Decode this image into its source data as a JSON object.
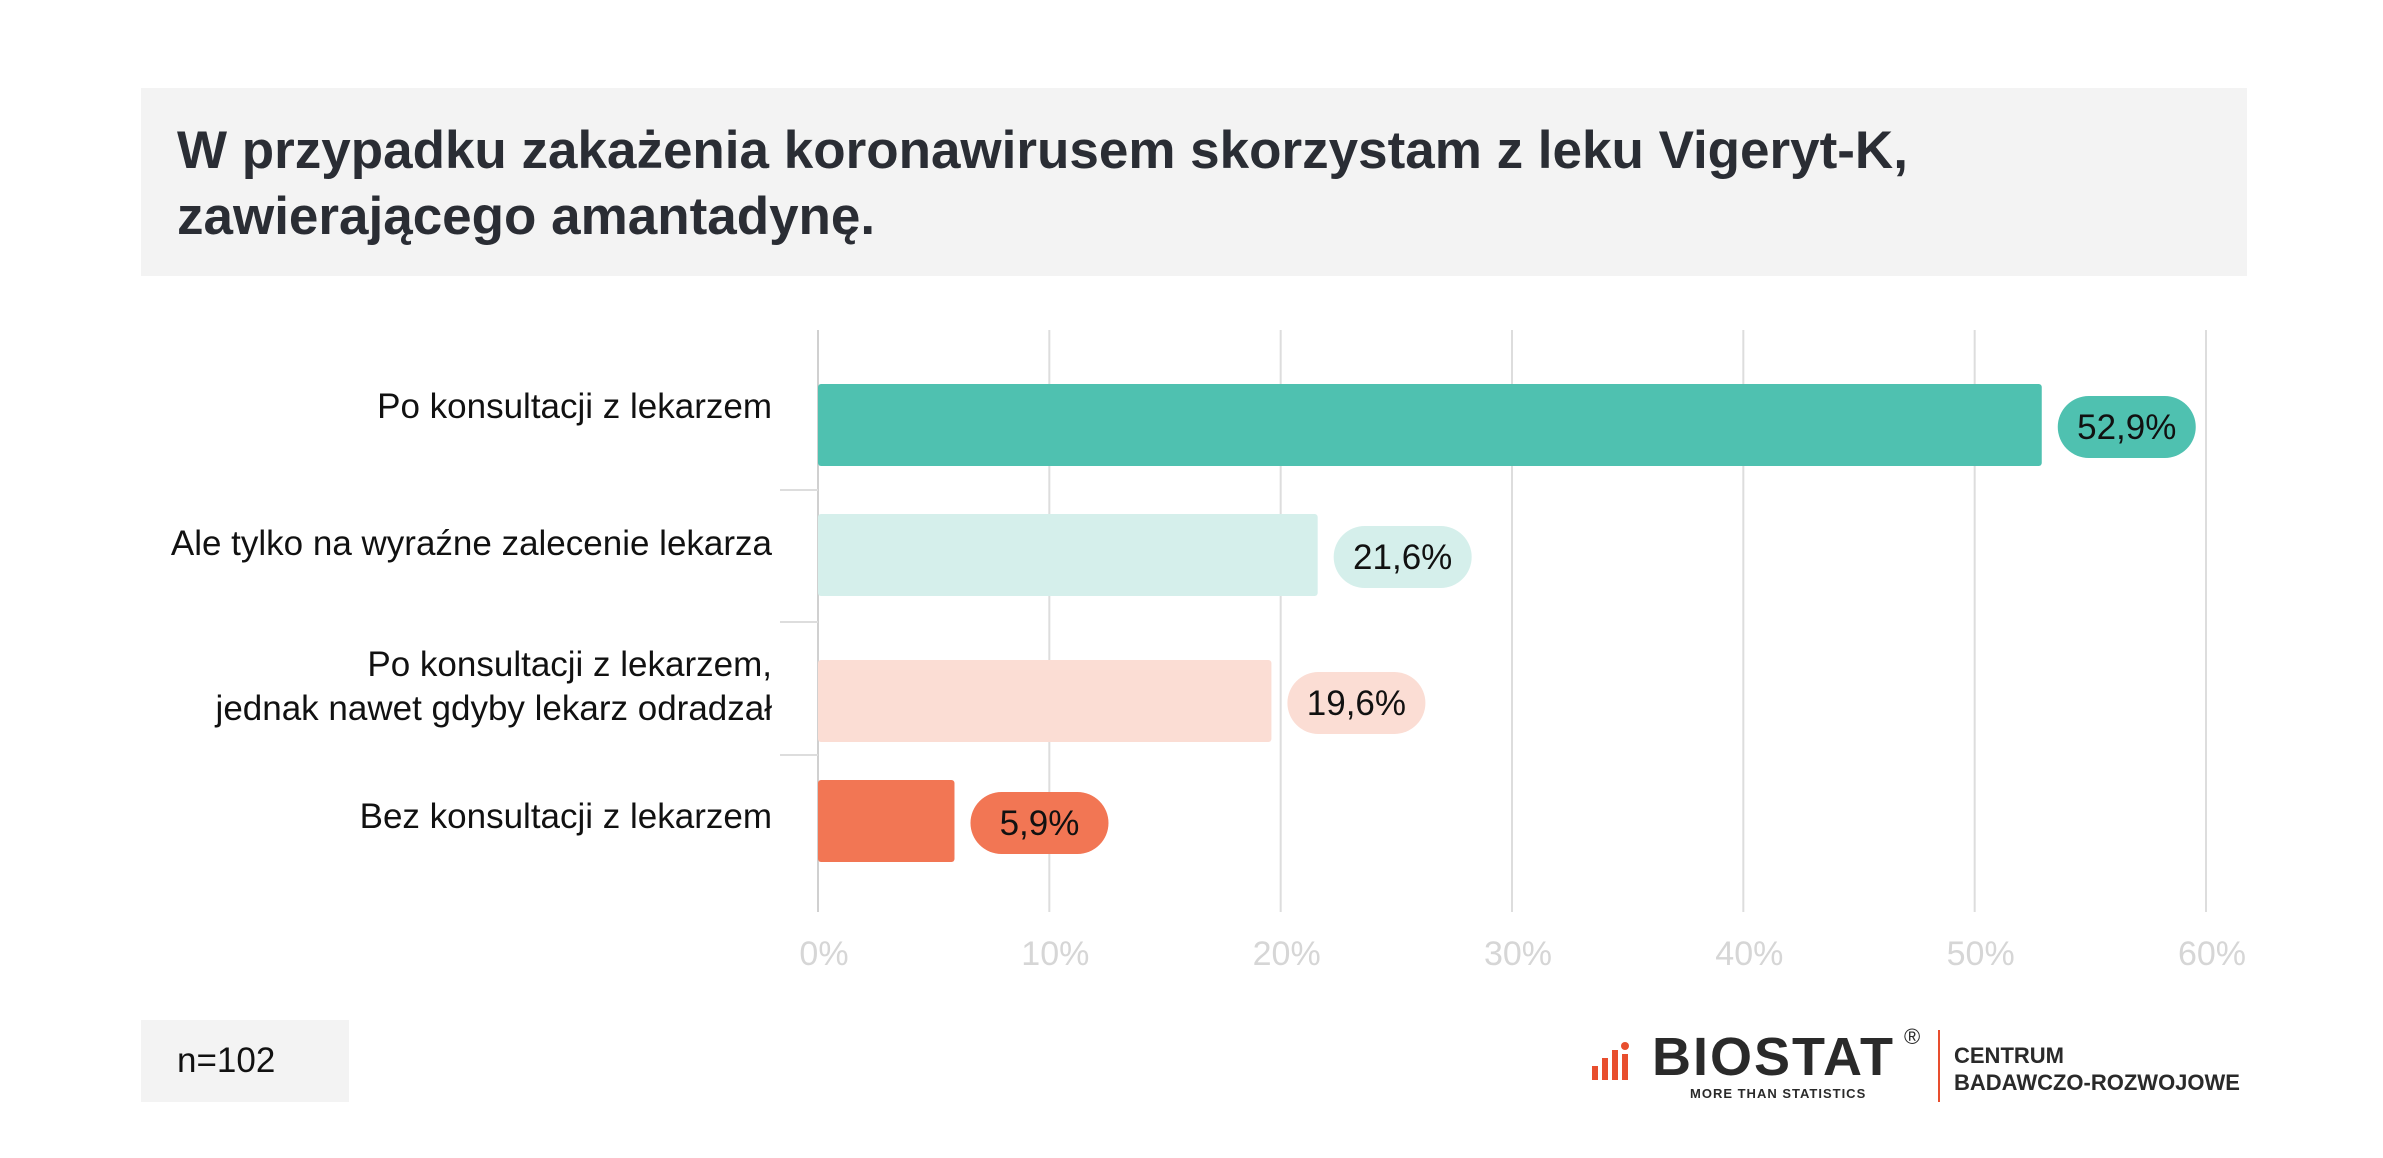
{
  "header": {
    "title_line1": "W przypadku zakażenia koronawirusem skorzystam z leku Vigeryt-K,",
    "title_line2": "zawierającego amantadynę."
  },
  "chart_data": {
    "type": "bar",
    "orientation": "horizontal",
    "categories": [
      [
        "Po konsultacji z lekarzem"
      ],
      [
        "Ale tylko na wyraźne zalecenie lekarza"
      ],
      [
        "Po konsultacji z lekarzem,",
        "jednak nawet gdyby lekarz odradzał"
      ],
      [
        "Bez konsultacji z lekarzem"
      ]
    ],
    "values": [
      52.9,
      21.6,
      19.6,
      5.9
    ],
    "value_labels": [
      "52,9%",
      "21,6%",
      "19,6%",
      "5,9%"
    ],
    "bar_colors": [
      "#4fc1b0",
      "#d5efeb",
      "#fbddd4",
      "#f27654"
    ],
    "xlim": [
      0,
      60
    ],
    "x_ticks": [
      0,
      10,
      20,
      30,
      40,
      50,
      60
    ],
    "x_tick_labels": [
      "0%",
      "10%",
      "20%",
      "30%",
      "40%",
      "50%",
      "60%"
    ],
    "grid": true
  },
  "footer": {
    "sample_size": "n=102",
    "logo_brand": "BIOSTAT",
    "logo_reg": "®",
    "logo_tagline": "MORE THAN STATISTICS",
    "org_line1": "CENTRUM",
    "org_line2": "BADAWCZO-ROZWOJOWE"
  }
}
